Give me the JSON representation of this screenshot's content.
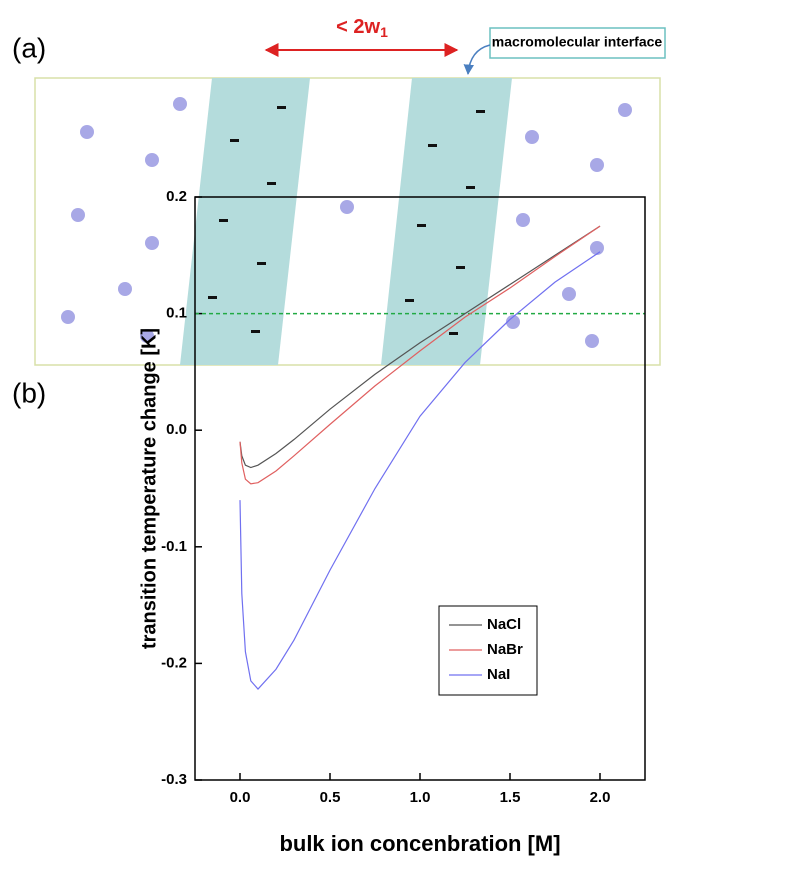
{
  "panel_a": {
    "label": "(a)",
    "width_label": "< 2w",
    "width_subscript": "1",
    "interface_label": "macromolecular interface"
  },
  "chart_data": {
    "type": "line",
    "panel_label": "(b)",
    "x_label": "bulk ion concenbration [M]",
    "y_label": "transition temperature change [K]",
    "x": [
      0,
      0.01,
      0.03,
      0.06,
      0.1,
      0.2,
      0.3,
      0.5,
      0.75,
      1.0,
      1.25,
      1.5,
      1.75,
      2.0
    ],
    "series": [
      {
        "name": "NaCl",
        "color": "#555555",
        "values": [
          -0.01,
          -0.022,
          -0.03,
          -0.032,
          -0.03,
          -0.02,
          -0.008,
          0.018,
          0.048,
          0.075,
          0.1,
          0.125,
          0.15,
          0.175
        ]
      },
      {
        "name": "NaBr",
        "color": "#e06060",
        "values": [
          -0.01,
          -0.028,
          -0.042,
          -0.046,
          -0.045,
          -0.035,
          -0.022,
          0.005,
          0.038,
          0.068,
          0.097,
          0.122,
          0.149,
          0.175
        ]
      },
      {
        "name": "NaI",
        "color": "#7070f0",
        "values": [
          -0.06,
          -0.14,
          -0.19,
          -0.215,
          -0.222,
          -0.205,
          -0.18,
          -0.12,
          -0.05,
          0.012,
          0.058,
          0.095,
          0.127,
          0.153
        ]
      }
    ],
    "xlim": [
      -0.25,
      2.25
    ],
    "ylim": [
      -0.3,
      0.2
    ],
    "xticks": [
      {
        "value": 0,
        "label": "0.0"
      },
      0.5,
      {
        "value": 1,
        "label": "1.0"
      },
      1.5,
      {
        "value": 2,
        "label": "2.0"
      }
    ],
    "yticks": [
      -0.3,
      -0.2,
      -0.1,
      {
        "value": 0,
        "label": "0.0"
      },
      0.1,
      0.2
    ],
    "reference_line": {
      "value": 0.1,
      "color": "#22aa44"
    },
    "legend": "lower right"
  }
}
